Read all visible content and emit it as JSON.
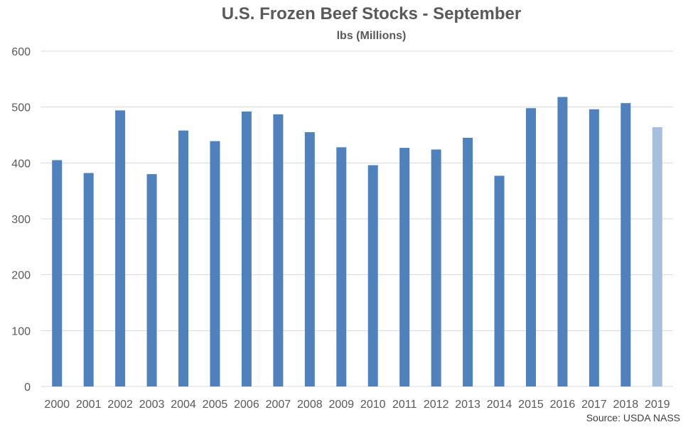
{
  "chart_data": {
    "type": "bar",
    "title": "U.S. Frozen Beef Stocks - September",
    "subtitle": "lbs (Millions)",
    "categories": [
      "2000",
      "2001",
      "2002",
      "2003",
      "2004",
      "2005",
      "2006",
      "2007",
      "2008",
      "2009",
      "2010",
      "2011",
      "2012",
      "2013",
      "2014",
      "2015",
      "2016",
      "2017",
      "2018",
      "2019"
    ],
    "values": [
      405,
      382,
      494,
      380,
      458,
      439,
      492,
      487,
      455,
      428,
      396,
      427,
      424,
      445,
      377,
      498,
      518,
      496,
      507,
      464
    ],
    "ylim": [
      0,
      600
    ],
    "yticks": [
      0,
      100,
      200,
      300,
      400,
      500,
      600
    ],
    "grid": true,
    "bar_color": "#4F81BD",
    "highlight_color": "#A7BFDE",
    "highlight_index": 19,
    "source": "Source: USDA NASS"
  }
}
